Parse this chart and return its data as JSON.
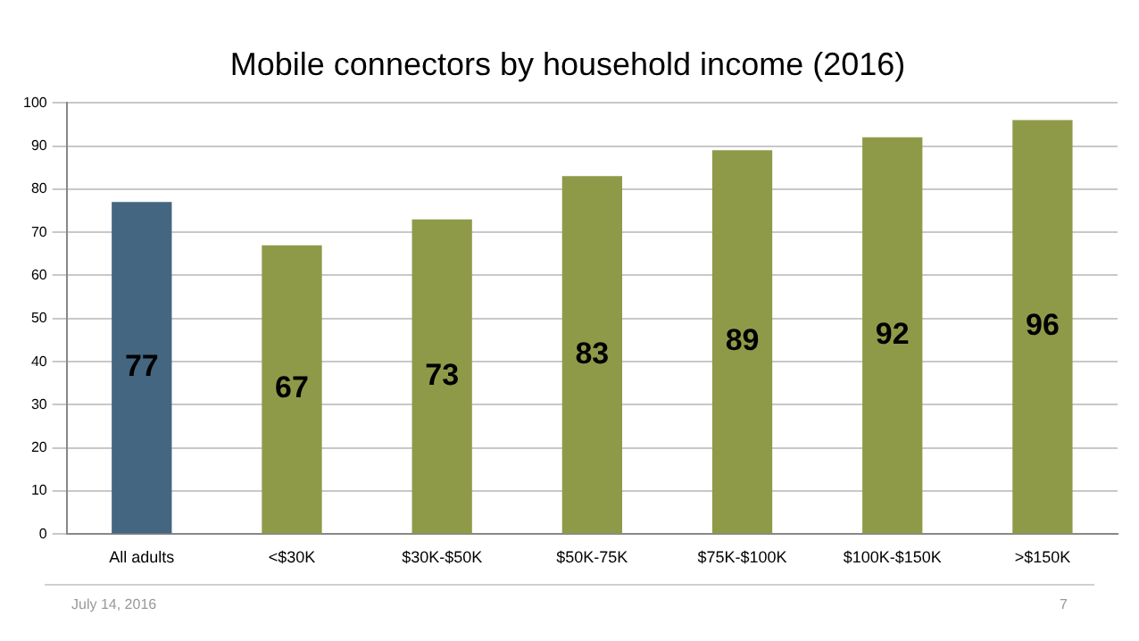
{
  "chart_data": {
    "type": "bar",
    "title": "Mobile connectors by household income (2016)",
    "categories": [
      "All adults",
      "<$30K",
      "$30K-$50K",
      "$50K-75K",
      "$75K-$100K",
      "$100K-$150K",
      ">$150K"
    ],
    "values": [
      77,
      67,
      73,
      83,
      89,
      92,
      96
    ],
    "colors": [
      "#446681",
      "#8f9a48",
      "#8f9a48",
      "#8f9a48",
      "#8f9a48",
      "#8f9a48",
      "#8f9a48"
    ],
    "ylim": [
      0,
      100
    ],
    "yticks": [
      0,
      10,
      20,
      30,
      40,
      50,
      60,
      70,
      80,
      90,
      100
    ],
    "grid": "y",
    "legend": false,
    "data_labels": true,
    "annotations": [
      "July 14, 2016",
      "7"
    ]
  }
}
